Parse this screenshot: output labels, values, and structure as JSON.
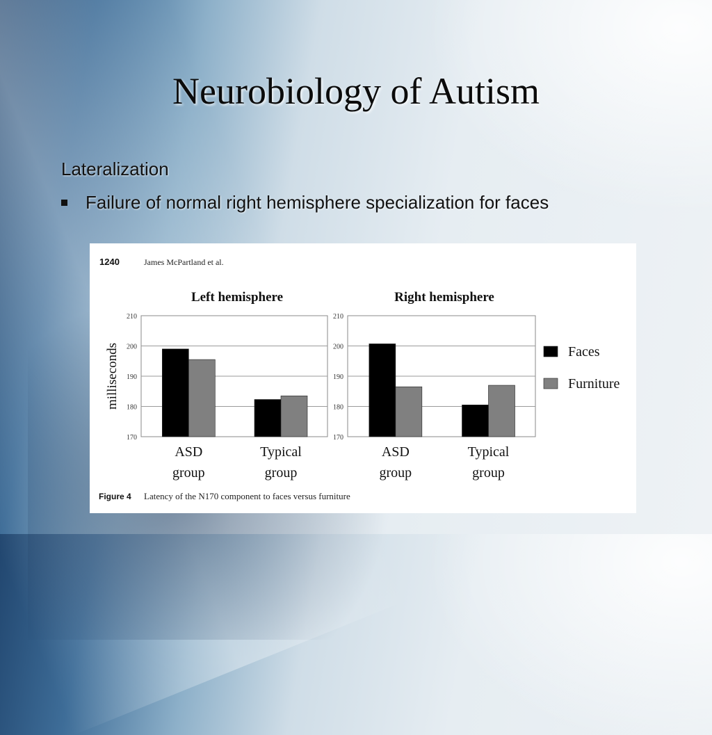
{
  "slide": {
    "title": "Neurobiology of Autism",
    "subheading": "Lateralization",
    "bullets": [
      "Failure of normal right hemisphere specialization for faces"
    ]
  },
  "figure": {
    "page_number": "1240",
    "authors": "James McPartland et al.",
    "caption_label": "Figure 4",
    "caption_text": "Latency of the N170 component to faces versus furniture"
  },
  "chart_data": [
    {
      "type": "bar",
      "title": "Left hemisphere",
      "ylabel": "milliseconds",
      "ylim": [
        170,
        210
      ],
      "yticks": [
        "210",
        "200",
        "190",
        "180",
        "170"
      ],
      "categories": [
        [
          "ASD",
          "group"
        ],
        [
          "Typical",
          "group"
        ]
      ],
      "series": [
        {
          "name": "Faces",
          "values": [
            199,
            182.3
          ],
          "color": "#000000"
        },
        {
          "name": "Furniture",
          "values": [
            195.5,
            183.5
          ],
          "color": "#808080"
        }
      ],
      "grid": true
    },
    {
      "type": "bar",
      "title": "Right hemisphere",
      "ylabel": "",
      "ylim": [
        170,
        210
      ],
      "yticks": [
        "210",
        "200",
        "190",
        "180",
        "170"
      ],
      "categories": [
        [
          "ASD",
          "group"
        ],
        [
          "Typical",
          "group"
        ]
      ],
      "series": [
        {
          "name": "Faces",
          "values": [
            200.7,
            180.5
          ],
          "color": "#000000"
        },
        {
          "name": "Furniture",
          "values": [
            186.5,
            187
          ],
          "color": "#808080"
        }
      ],
      "grid": true,
      "legend": "right"
    }
  ]
}
